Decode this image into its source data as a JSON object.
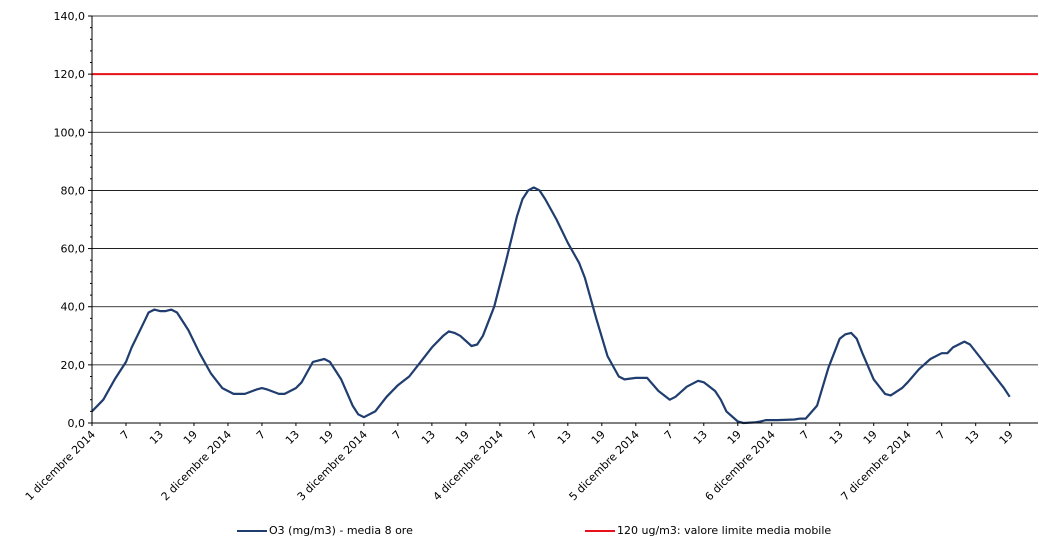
{
  "chart_data": {
    "type": "line",
    "title": "",
    "xlabel": "",
    "ylabel": "",
    "ylim": [
      0,
      140
    ],
    "ytick_labels": [
      "0,0",
      "20,0",
      "40,0",
      "60,0",
      "80,0",
      "100,0",
      "120,0",
      "140,0"
    ],
    "grid": true,
    "x_unit": "hour",
    "x_range": [
      0,
      167
    ],
    "x_tick_labels": [
      {
        "hour": 0,
        "label": "1 dicembre 2014"
      },
      {
        "hour": 6,
        "label": "7"
      },
      {
        "hour": 12,
        "label": "13"
      },
      {
        "hour": 18,
        "label": "19"
      },
      {
        "hour": 24,
        "label": "2 dicembre 2014"
      },
      {
        "hour": 30,
        "label": "7"
      },
      {
        "hour": 36,
        "label": "13"
      },
      {
        "hour": 42,
        "label": "19"
      },
      {
        "hour": 48,
        "label": "3 dicembre 2014"
      },
      {
        "hour": 54,
        "label": "7"
      },
      {
        "hour": 60,
        "label": "13"
      },
      {
        "hour": 66,
        "label": "19"
      },
      {
        "hour": 72,
        "label": "4 dicembre 2014"
      },
      {
        "hour": 78,
        "label": "7"
      },
      {
        "hour": 84,
        "label": "13"
      },
      {
        "hour": 90,
        "label": "19"
      },
      {
        "hour": 96,
        "label": "5 dicembre 2014"
      },
      {
        "hour": 102,
        "label": "7"
      },
      {
        "hour": 108,
        "label": "13"
      },
      {
        "hour": 114,
        "label": "19"
      },
      {
        "hour": 120,
        "label": "6 dicembre 2014"
      },
      {
        "hour": 126,
        "label": "7"
      },
      {
        "hour": 132,
        "label": "13"
      },
      {
        "hour": 138,
        "label": "19"
      },
      {
        "hour": 144,
        "label": "7 dicembre 2014"
      },
      {
        "hour": 150,
        "label": "7"
      },
      {
        "hour": 156,
        "label": "13"
      },
      {
        "hour": 162,
        "label": "19"
      }
    ],
    "series": [
      {
        "name": "O3 (mg/m3) - media 8 ore",
        "color": "#1f3d6e",
        "points": [
          [
            0,
            4
          ],
          [
            2,
            8
          ],
          [
            4,
            15
          ],
          [
            6,
            21
          ],
          [
            7,
            26
          ],
          [
            9,
            34
          ],
          [
            10,
            38
          ],
          [
            11,
            39
          ],
          [
            12,
            38.5
          ],
          [
            13,
            38.5
          ],
          [
            14,
            39
          ],
          [
            15,
            38
          ],
          [
            17,
            32
          ],
          [
            19,
            24
          ],
          [
            21,
            17
          ],
          [
            23,
            12
          ],
          [
            25,
            10
          ],
          [
            27,
            10
          ],
          [
            29,
            11.5
          ],
          [
            30,
            12
          ],
          [
            31,
            11.5
          ],
          [
            33,
            10
          ],
          [
            34,
            10
          ],
          [
            36,
            12
          ],
          [
            37,
            14
          ],
          [
            39,
            21
          ],
          [
            41,
            22
          ],
          [
            42,
            21
          ],
          [
            44,
            15
          ],
          [
            46,
            6
          ],
          [
            47,
            3
          ],
          [
            48,
            2
          ],
          [
            50,
            4
          ],
          [
            52,
            9
          ],
          [
            54,
            13
          ],
          [
            56,
            16
          ],
          [
            58,
            21
          ],
          [
            60,
            26
          ],
          [
            62,
            30
          ],
          [
            63,
            31.5
          ],
          [
            64,
            31
          ],
          [
            65,
            30
          ],
          [
            67,
            26.5
          ],
          [
            68,
            27
          ],
          [
            69,
            30
          ],
          [
            71,
            40
          ],
          [
            73,
            55
          ],
          [
            75,
            71
          ],
          [
            76,
            77
          ],
          [
            77,
            80
          ],
          [
            78,
            81
          ],
          [
            79,
            80
          ],
          [
            80,
            77
          ],
          [
            82,
            70
          ],
          [
            84,
            62
          ],
          [
            86,
            55
          ],
          [
            87,
            50
          ],
          [
            89,
            36
          ],
          [
            91,
            23
          ],
          [
            93,
            16
          ],
          [
            94,
            15
          ],
          [
            96,
            15.5
          ],
          [
            98,
            15.5
          ],
          [
            100,
            11
          ],
          [
            102,
            8
          ],
          [
            103,
            9
          ],
          [
            105,
            12.5
          ],
          [
            107,
            14.5
          ],
          [
            108,
            14
          ],
          [
            110,
            11
          ],
          [
            111,
            8
          ],
          [
            112,
            4
          ],
          [
            114,
            0.5
          ],
          [
            115,
            0
          ],
          [
            117,
            0.2
          ],
          [
            118,
            0.5
          ],
          [
            119,
            1
          ],
          [
            121,
            1
          ],
          [
            124,
            1.2
          ],
          [
            125,
            1.5
          ],
          [
            126,
            1.5
          ],
          [
            128,
            6
          ],
          [
            130,
            19
          ],
          [
            132,
            29
          ],
          [
            133,
            30.5
          ],
          [
            134,
            31
          ],
          [
            135,
            29
          ],
          [
            136,
            24
          ],
          [
            138,
            15
          ],
          [
            140,
            10
          ],
          [
            141,
            9.5
          ],
          [
            143,
            12
          ],
          [
            144,
            14
          ],
          [
            146,
            18.5
          ],
          [
            148,
            22
          ],
          [
            150,
            24
          ],
          [
            151,
            24
          ],
          [
            152,
            26
          ],
          [
            154,
            28
          ],
          [
            155,
            27
          ],
          [
            157,
            22
          ],
          [
            159,
            17
          ],
          [
            161,
            12
          ],
          [
            162,
            9
          ]
        ]
      },
      {
        "name": "120 ug/m3: valore limite media mobile",
        "color": "#e8101a",
        "points": [
          [
            0,
            120
          ],
          [
            167,
            120
          ]
        ]
      }
    ],
    "legend": {
      "placement": "bottom",
      "entries": [
        {
          "label": "O3 (mg/m3) - media 8 ore",
          "color": "#1f3d6e"
        },
        {
          "label": "120 ug/m3: valore limite media mobile",
          "color": "#e8101a"
        }
      ]
    }
  }
}
